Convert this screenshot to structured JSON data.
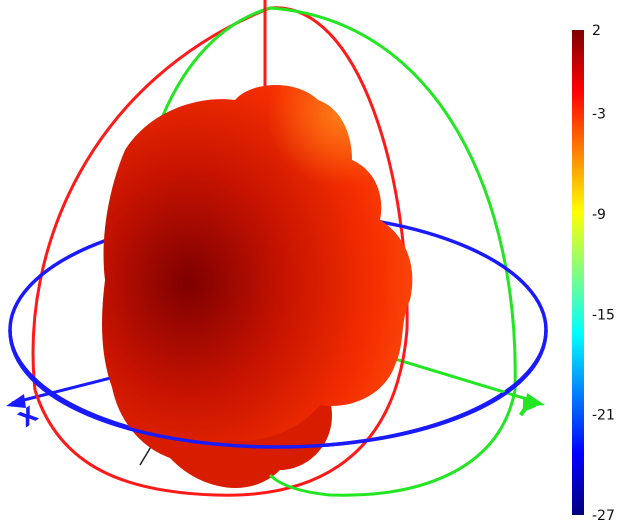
{
  "header": {
    "partial_label": ""
  },
  "chart_data": {
    "type": "3d-radiation-pattern",
    "title": "",
    "axes": [
      {
        "name": "X",
        "color": "#1a1aff"
      },
      {
        "name": "Y",
        "color": "#1a1aff"
      }
    ],
    "guide_circles": {
      "azimuth_color": "#1a1aff",
      "elevation_xz_color": "#ff1a1a",
      "elevation_yz_color": "#22e622"
    },
    "colorbar": {
      "label": "",
      "min": -27,
      "max": 2,
      "ticks": [
        2,
        -3,
        -9,
        -15,
        -21,
        -27
      ],
      "tick_labels": [
        "2",
        "-3",
        "-9",
        "-15",
        "-21",
        "-27"
      ],
      "colormap": "jet",
      "colormap_stops": [
        "#00007f",
        "#0000ff",
        "#00ffff",
        "#ffff00",
        "#ff0000",
        "#7f0000"
      ]
    },
    "pattern_color_range": [
      "#8b0000",
      "#ff3000",
      "#ff7a10"
    ]
  }
}
